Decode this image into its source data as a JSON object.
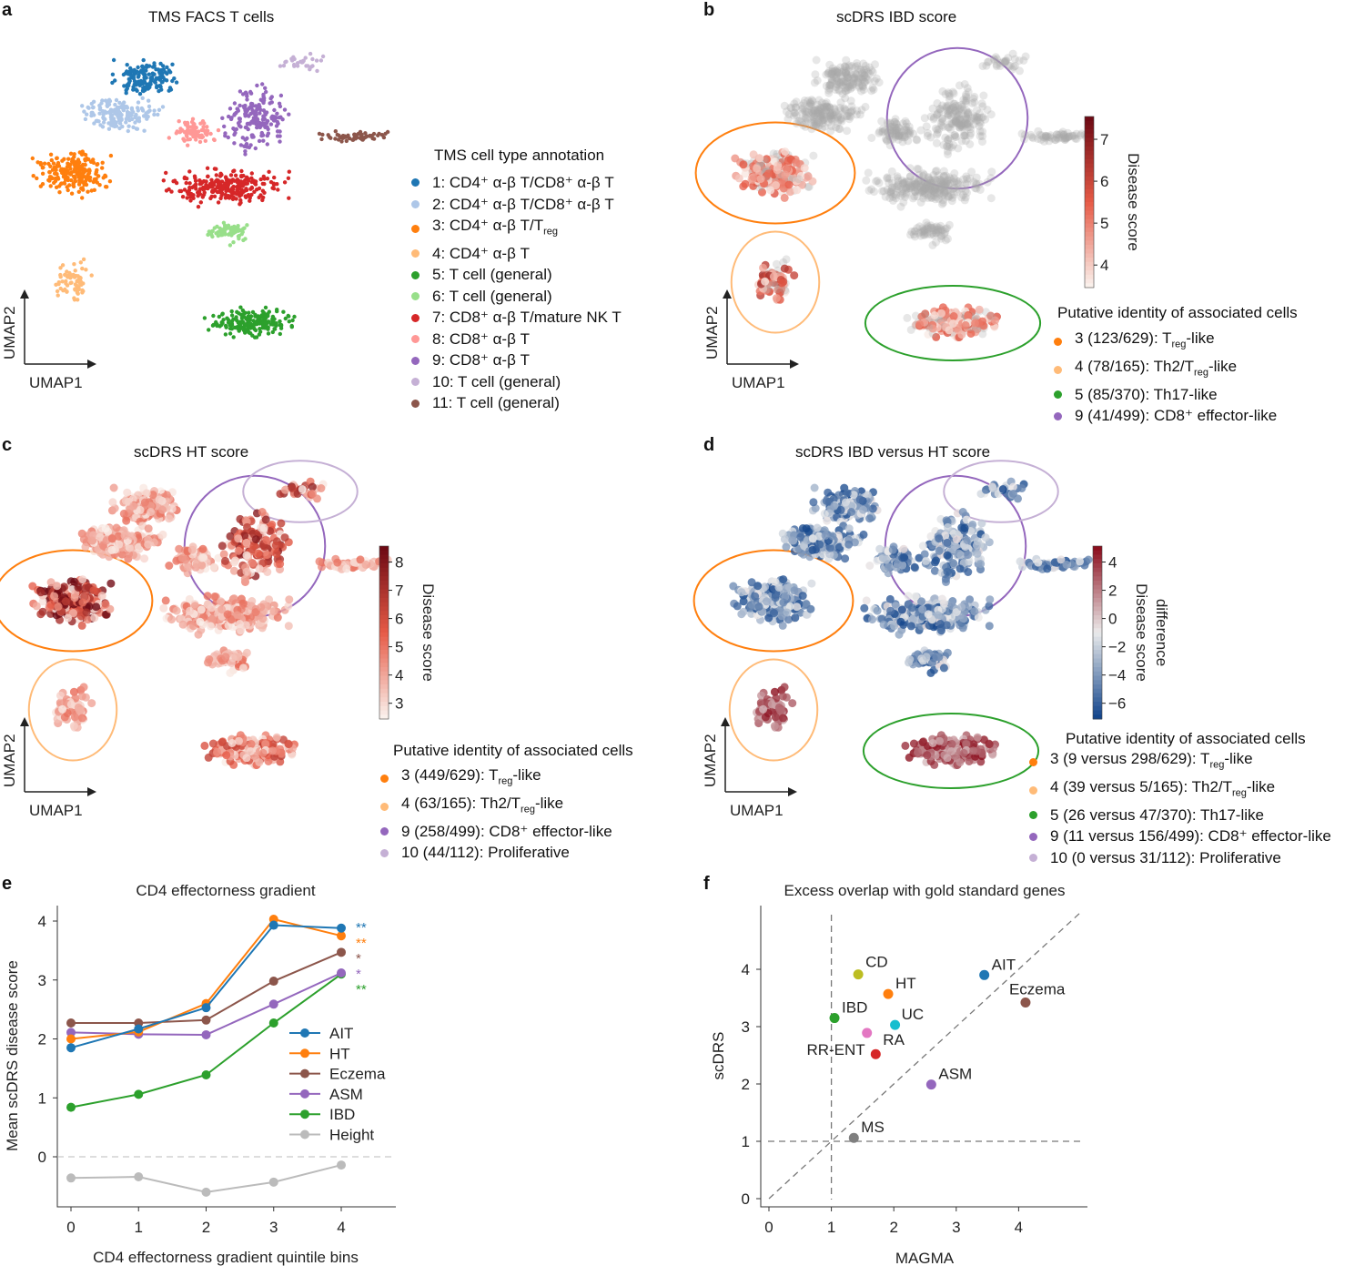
{
  "panels": {
    "a": {
      "letter": "a",
      "title": "TMS FACS T cells",
      "legend_title": "TMS cell type annotation",
      "legend": [
        {
          "color": "#1f77b4",
          "parts": [
            "1: CD4⁺ α-β T/CD8⁺ α-β T"
          ]
        },
        {
          "color": "#aec7e8",
          "parts": [
            "2: CD4⁺ α-β T/CD8⁺ α-β T"
          ]
        },
        {
          "color": "#ff7f0e",
          "parts": [
            "3: CD4⁺ α-β T/T",
            "reg",
            ""
          ]
        },
        {
          "color": "#ffbb78",
          "parts": [
            "4: CD4⁺ α-β T"
          ]
        },
        {
          "color": "#2ca02c",
          "parts": [
            "5: T cell (general)"
          ]
        },
        {
          "color": "#98df8a",
          "parts": [
            "6: T cell (general)"
          ]
        },
        {
          "color": "#d62728",
          "parts": [
            "7: CD8⁺ α-β T/mature NK T"
          ]
        },
        {
          "color": "#ff9896",
          "parts": [
            "8: CD8⁺ α-β T"
          ]
        },
        {
          "color": "#9467bd",
          "parts": [
            "9: CD8⁺ α-β T"
          ]
        },
        {
          "color": "#c5b0d5",
          "parts": [
            "10: T cell (general)"
          ]
        },
        {
          "color": "#8c564b",
          "parts": [
            "11: T cell (general)"
          ]
        }
      ]
    },
    "b": {
      "letter": "b",
      "title": "scDRS IBD score",
      "colorbar_label": "Disease score",
      "colorbar_ticks": [
        "7",
        "6",
        "5",
        "4"
      ],
      "legend_title": "Putative identity of associated cells",
      "legend": [
        {
          "color": "#ff7f0e",
          "parts": [
            "3 (123/629): T",
            "reg",
            "-like"
          ]
        },
        {
          "color": "#ffbb78",
          "parts": [
            "4 (78/165): Th2/T",
            "reg",
            "-like"
          ]
        },
        {
          "color": "#2ca02c",
          "parts": [
            "5 (85/370): Th17-like"
          ]
        },
        {
          "color": "#9467bd",
          "parts": [
            "9 (41/499): CD8⁺ effector-like"
          ]
        }
      ]
    },
    "c": {
      "letter": "c",
      "title": "scDRS HT score",
      "colorbar_label": "Disease score",
      "colorbar_ticks": [
        "8",
        "7",
        "6",
        "5",
        "4",
        "3"
      ],
      "legend_title": "Putative identity of associated cells",
      "legend": [
        {
          "color": "#ff7f0e",
          "parts": [
            "3 (449/629): T",
            "reg",
            "-like"
          ]
        },
        {
          "color": "#ffbb78",
          "parts": [
            "4 (63/165): Th2/T",
            "reg",
            "-like"
          ]
        },
        {
          "color": "#9467bd",
          "parts": [
            "9 (258/499): CD8⁺ effector-like"
          ]
        },
        {
          "color": "#c5b0d5",
          "parts": [
            "10 (44/112): Proliferative"
          ]
        }
      ]
    },
    "d": {
      "letter": "d",
      "title": "scDRS IBD versus HT score",
      "colorbar_label": "Disease score difference",
      "colorbar_label_lines": [
        "Disease score",
        "difference"
      ],
      "colorbar_ticks": [
        "4",
        "2",
        "0",
        "−2",
        "−4",
        "−6"
      ],
      "legend_title": "Putative identity of associated cells",
      "legend": [
        {
          "color": "#ff7f0e",
          "parts": [
            "3 (9 versus 298/629): T",
            "reg",
            "-like"
          ]
        },
        {
          "color": "#ffbb78",
          "parts": [
            "4 (39 versus 5/165): Th2/T",
            "reg",
            "-like"
          ]
        },
        {
          "color": "#2ca02c",
          "parts": [
            "5 (26 versus 47/370): Th17-like"
          ]
        },
        {
          "color": "#9467bd",
          "parts": [
            "9 (11 versus 156/499): CD8⁺ effector-like"
          ]
        },
        {
          "color": "#c5b0d5",
          "parts": [
            "10 (0 versus  31/112): Proliferative"
          ]
        }
      ]
    },
    "umap_axes": {
      "x": "UMAP1",
      "y": "UMAP2"
    }
  },
  "chart_data": [
    {
      "panel": "e",
      "type": "line",
      "title": "CD4 effectorness gradient",
      "xlabel": "CD4 effectorness gradient quintile bins",
      "ylabel": "Mean scDRS disease score",
      "x": [
        0,
        1,
        2,
        3,
        4
      ],
      "xticks": [
        "0",
        "1",
        "2",
        "3",
        "4"
      ],
      "yticks": [
        "0",
        "1",
        "2",
        "3",
        "4"
      ],
      "ylim": [
        -0.85,
        4.25
      ],
      "xlim": [
        -0.2,
        4.8
      ],
      "reference_line": 0,
      "legend_placement": "center-right",
      "series": [
        {
          "name": "AIT",
          "color": "#1f77b4",
          "values": [
            1.85,
            2.17,
            2.53,
            3.93,
            3.88
          ],
          "significance": "**"
        },
        {
          "name": "HT",
          "color": "#ff7f0e",
          "values": [
            2.0,
            2.12,
            2.6,
            4.03,
            3.75
          ],
          "significance": "**"
        },
        {
          "name": "Eczema",
          "color": "#8c564b",
          "values": [
            2.27,
            2.27,
            2.32,
            2.98,
            3.47
          ],
          "significance": "*"
        },
        {
          "name": "ASM",
          "color": "#9467bd",
          "values": [
            2.11,
            2.08,
            2.07,
            2.59,
            3.12
          ],
          "significance": "*"
        },
        {
          "name": "IBD",
          "color": "#2ca02c",
          "values": [
            0.84,
            1.06,
            1.39,
            2.27,
            3.1
          ],
          "significance": "**"
        },
        {
          "name": "Height",
          "color": "#bbbbbb",
          "values": [
            -0.36,
            -0.34,
            -0.6,
            -0.43,
            -0.14
          ],
          "significance": ""
        }
      ]
    },
    {
      "panel": "f",
      "type": "scatter",
      "title": "Excess overlap with gold standard genes",
      "xlabel": "MAGMA",
      "ylabel": "scDRS",
      "xticks": [
        "0",
        "1",
        "2",
        "3",
        "4"
      ],
      "yticks": [
        "0",
        "1",
        "2",
        "3",
        "4"
      ],
      "xlim": [
        -0.13,
        5.1
      ],
      "ylim": [
        -0.13,
        5.0
      ],
      "reference_lines": [
        "x=1",
        "y=1",
        "y=x"
      ],
      "points": [
        {
          "label": "CD",
          "x": 1.43,
          "y": 3.91,
          "color": "#bcbd22"
        },
        {
          "label": "HT",
          "x": 1.91,
          "y": 3.57,
          "color": "#ff7f0e"
        },
        {
          "label": "AIT",
          "x": 3.45,
          "y": 3.9,
          "color": "#1f77b4"
        },
        {
          "label": "Eczema",
          "x": 4.11,
          "y": 3.42,
          "color": "#8c564b"
        },
        {
          "label": "IBD",
          "x": 1.05,
          "y": 3.15,
          "color": "#2ca02c"
        },
        {
          "label": "UC",
          "x": 2.02,
          "y": 3.03,
          "color": "#17becf"
        },
        {
          "label": "RR-ENT",
          "x": 1.57,
          "y": 2.89,
          "color": "#e377c2"
        },
        {
          "label": "RA",
          "x": 1.71,
          "y": 2.52,
          "color": "#d62728"
        },
        {
          "label": "ASM",
          "x": 2.6,
          "y": 1.99,
          "color": "#9467bd"
        },
        {
          "label": "MS",
          "x": 1.36,
          "y": 1.06,
          "color": "#7f7f7f"
        }
      ]
    }
  ]
}
